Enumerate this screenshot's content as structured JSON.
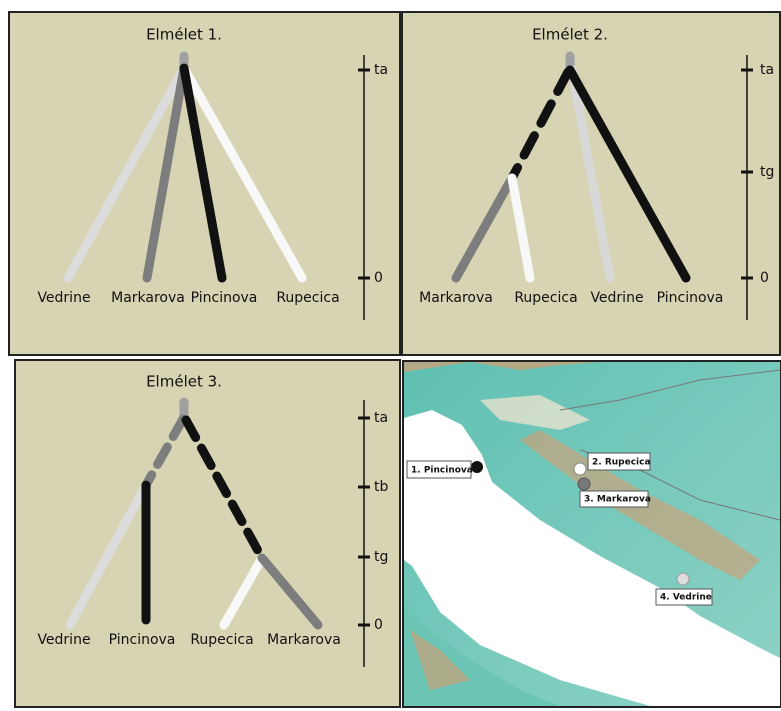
{
  "panels": [
    {
      "title": "Elmélet 1.",
      "leaves": [
        "Vedrine",
        "Markarova",
        "Pincinova",
        "Rupecica"
      ],
      "axis_labels": [
        "ta",
        "0"
      ]
    },
    {
      "title": "Elmélet 2.",
      "leaves": [
        "Markarova",
        "Rupecica",
        "Vedrine",
        "Pincinova"
      ],
      "axis_labels": [
        "ta",
        "tg",
        "0"
      ]
    },
    {
      "title": "Elmélet 3.",
      "leaves": [
        "Vedrine",
        "Pincinova",
        "Rupecica",
        "Markarova"
      ],
      "axis_labels": [
        "ta",
        "tb",
        "tg",
        "0"
      ]
    }
  ],
  "map": {
    "labels": [
      "1. Pincinova",
      "2. Rupecica",
      "3. Markarova",
      "4. Vedrine"
    ]
  }
}
